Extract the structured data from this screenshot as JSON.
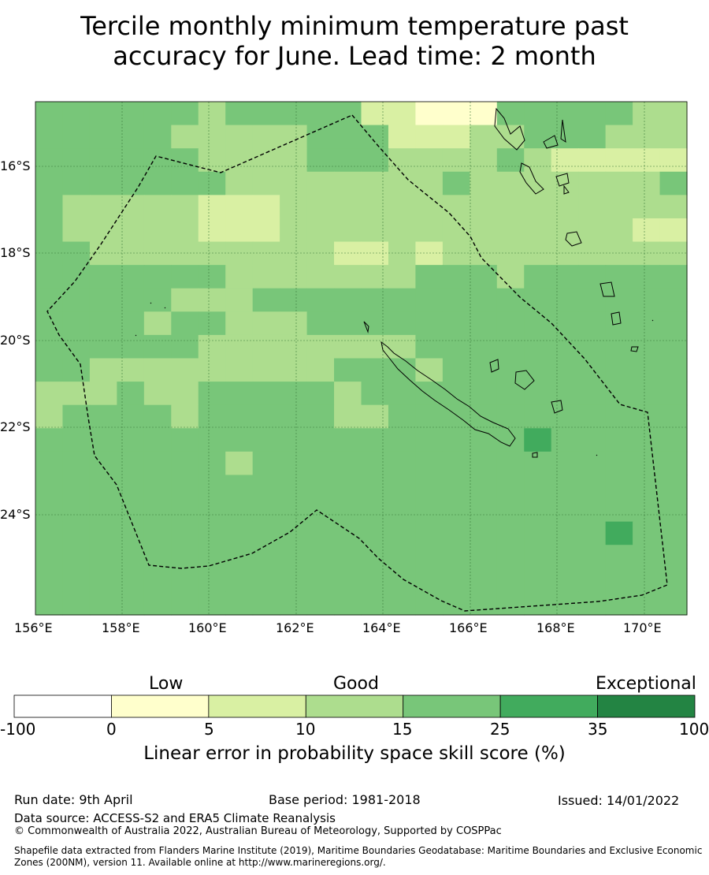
{
  "title": {
    "line1": "Tercile monthly minimum temperature past",
    "line2": "accuracy for June. Lead time: 2 month"
  },
  "map": {
    "lat_labels": [
      "16°S",
      "18°S",
      "20°S",
      "22°S",
      "24°S"
    ],
    "lon_labels": [
      "156°E",
      "158°E",
      "160°E",
      "162°E",
      "164°E",
      "166°E",
      "168°E",
      "170°E"
    ],
    "colors": [
      "#ffffff",
      "#ffffcc",
      "#d9f0a3",
      "#addd8e",
      "#78c679",
      "#41ab5d",
      "#238443"
    ],
    "grid": [
      "444444344444221114444433",
      "444443333344422233444333",
      "444444333344433334322222",
      "444444433333333433333334",
      "433333222333333333333333",
      "433333222333333333333322",
      "443333333332232333333333",
      "444444433333334443444444",
      "444443334444444444444444",
      "444434433344444444444444",
      "444444333333334444444444",
      "443333333334443444444444",
      "333433444443444444444444",
      "344443444443344444444444",
      "444444444444444444544444",
      "444444434444444444444444",
      "444444444444444444444444",
      "444444444444444444444444",
      "444444444444444444444544",
      "444444444444444444444444",
      "444444444444444444444444",
      "444444444444444444444444"
    ]
  },
  "colorbar": {
    "categories": [
      "Low",
      "Good",
      "Exceptional"
    ],
    "ticks": [
      "-100",
      "0",
      "5",
      "10",
      "15",
      "25",
      "35",
      "100"
    ],
    "title": "Linear error in probability space skill score (%)"
  },
  "footer": {
    "run_date": "Run date: 9th April",
    "base_period": "Base period: 1981-2018",
    "issued": "Issued: 14/01/2022",
    "data_source": "Data source: ACCESS-S2 and ERA5 Climate Reanalysis",
    "copyright": "© Commonwealth of Australia 2022, Australian Bureau of Meteorology, Supported by COSPPac",
    "shapefile": "Shapefile data extracted from Flanders Marine Institute (2019), Maritime Boundaries Geodatabase: Maritime Boundaries and Exclusive Economic Zones (200NM), version 11. Available online at http://www.marineregions.org/."
  }
}
